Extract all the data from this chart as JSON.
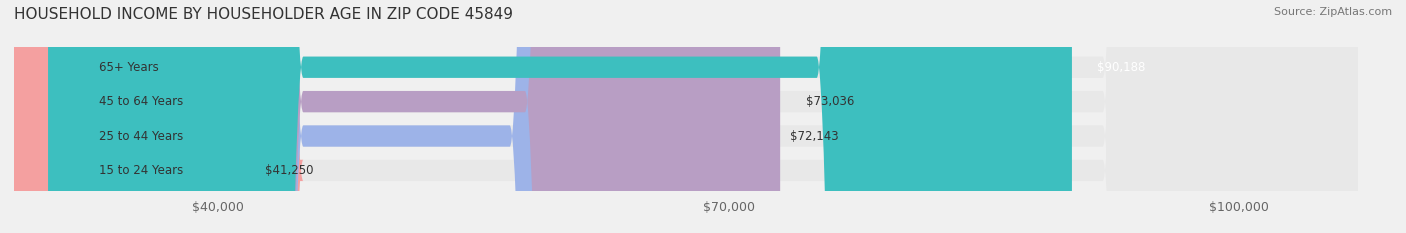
{
  "title": "HOUSEHOLD INCOME BY HOUSEHOLDER AGE IN ZIP CODE 45849",
  "source": "Source: ZipAtlas.com",
  "categories": [
    "15 to 24 Years",
    "25 to 44 Years",
    "45 to 64 Years",
    "65+ Years"
  ],
  "values": [
    41250,
    72143,
    73036,
    90188
  ],
  "bar_colors": [
    "#f4a0a0",
    "#9db3e8",
    "#b89ec4",
    "#3dbfbf"
  ],
  "bar_edge_colors": [
    "#e08080",
    "#7a96d4",
    "#9a7fb0",
    "#2aa8a8"
  ],
  "label_colors": [
    "#333333",
    "#333333",
    "#333333",
    "#ffffff"
  ],
  "value_labels": [
    "$41,250",
    "$72,143",
    "$73,036",
    "$90,188"
  ],
  "x_ticks": [
    40000,
    70000,
    100000
  ],
  "x_tick_labels": [
    "$40,000",
    "$70,000",
    "$100,000"
  ],
  "x_min": 30000,
  "x_max": 107000,
  "background_color": "#f0f0f0",
  "bar_bg_color": "#e8e8e8",
  "title_fontsize": 11,
  "source_fontsize": 8,
  "tick_fontsize": 9,
  "bar_label_fontsize": 8.5,
  "value_label_fontsize": 8.5
}
